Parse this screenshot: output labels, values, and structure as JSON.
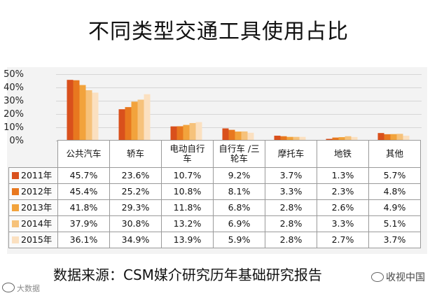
{
  "title": "不同类型交通工具使用占比",
  "source": "数据来源：CSM媒介研究历年基础研究报告",
  "watermark_left": "大数据",
  "watermark_right": "收视中国",
  "colors": [
    "#d9501c",
    "#e8781f",
    "#f2a33c",
    "#f6c27b",
    "#fbe0c0"
  ],
  "chart_data": {
    "type": "bar",
    "title": "不同类型交通工具使用占比",
    "categories": [
      "公共汽车",
      "轿车",
      "电动自行车",
      "自行车 /三轮车",
      "摩托车",
      "地铁",
      "其他"
    ],
    "category_lines": [
      [
        "公共汽车"
      ],
      [
        "轿车"
      ],
      [
        "电动自行",
        "车"
      ],
      [
        "自行车 /三",
        "轮车"
      ],
      [
        "摩托车"
      ],
      [
        "地铁"
      ],
      [
        "其他"
      ]
    ],
    "series": [
      {
        "name": "2011年",
        "values": [
          45.7,
          23.6,
          10.7,
          9.2,
          3.7,
          1.3,
          5.7
        ],
        "labels": [
          "45.7%",
          "23.6%",
          "10.7%",
          "9.2%",
          "3.7%",
          "1.3%",
          "5.7%"
        ]
      },
      {
        "name": "2012年",
        "values": [
          45.4,
          25.2,
          10.8,
          8.1,
          3.3,
          2.3,
          4.8
        ],
        "labels": [
          "45.4%",
          "25.2%",
          "10.8%",
          "8.1%",
          "3.3%",
          "2.3%",
          "4.8%"
        ]
      },
      {
        "name": "2013年",
        "values": [
          41.8,
          29.3,
          11.8,
          6.8,
          2.8,
          2.6,
          4.9
        ],
        "labels": [
          "41.8%",
          "29.3%",
          "11.8%",
          "6.8%",
          "2.8%",
          "2.6%",
          "4.9%"
        ]
      },
      {
        "name": "2014年",
        "values": [
          37.9,
          30.8,
          13.2,
          6.9,
          2.8,
          3.3,
          5.1
        ],
        "labels": [
          "37.9%",
          "30.8%",
          "13.2%",
          "6.9%",
          "2.8%",
          "3.3%",
          "5.1%"
        ]
      },
      {
        "name": "2015年",
        "values": [
          36.1,
          34.9,
          13.9,
          5.9,
          2.8,
          2.7,
          3.7
        ],
        "labels": [
          "36.1%",
          "34.9%",
          "13.9%",
          "5.9%",
          "2.8%",
          "2.7%",
          "3.7%"
        ]
      }
    ],
    "yticks": [
      "50%",
      "40%",
      "30%",
      "20%",
      "10%",
      "0%"
    ],
    "ylim": [
      0,
      50
    ],
    "grid": true,
    "legend": "data table"
  }
}
